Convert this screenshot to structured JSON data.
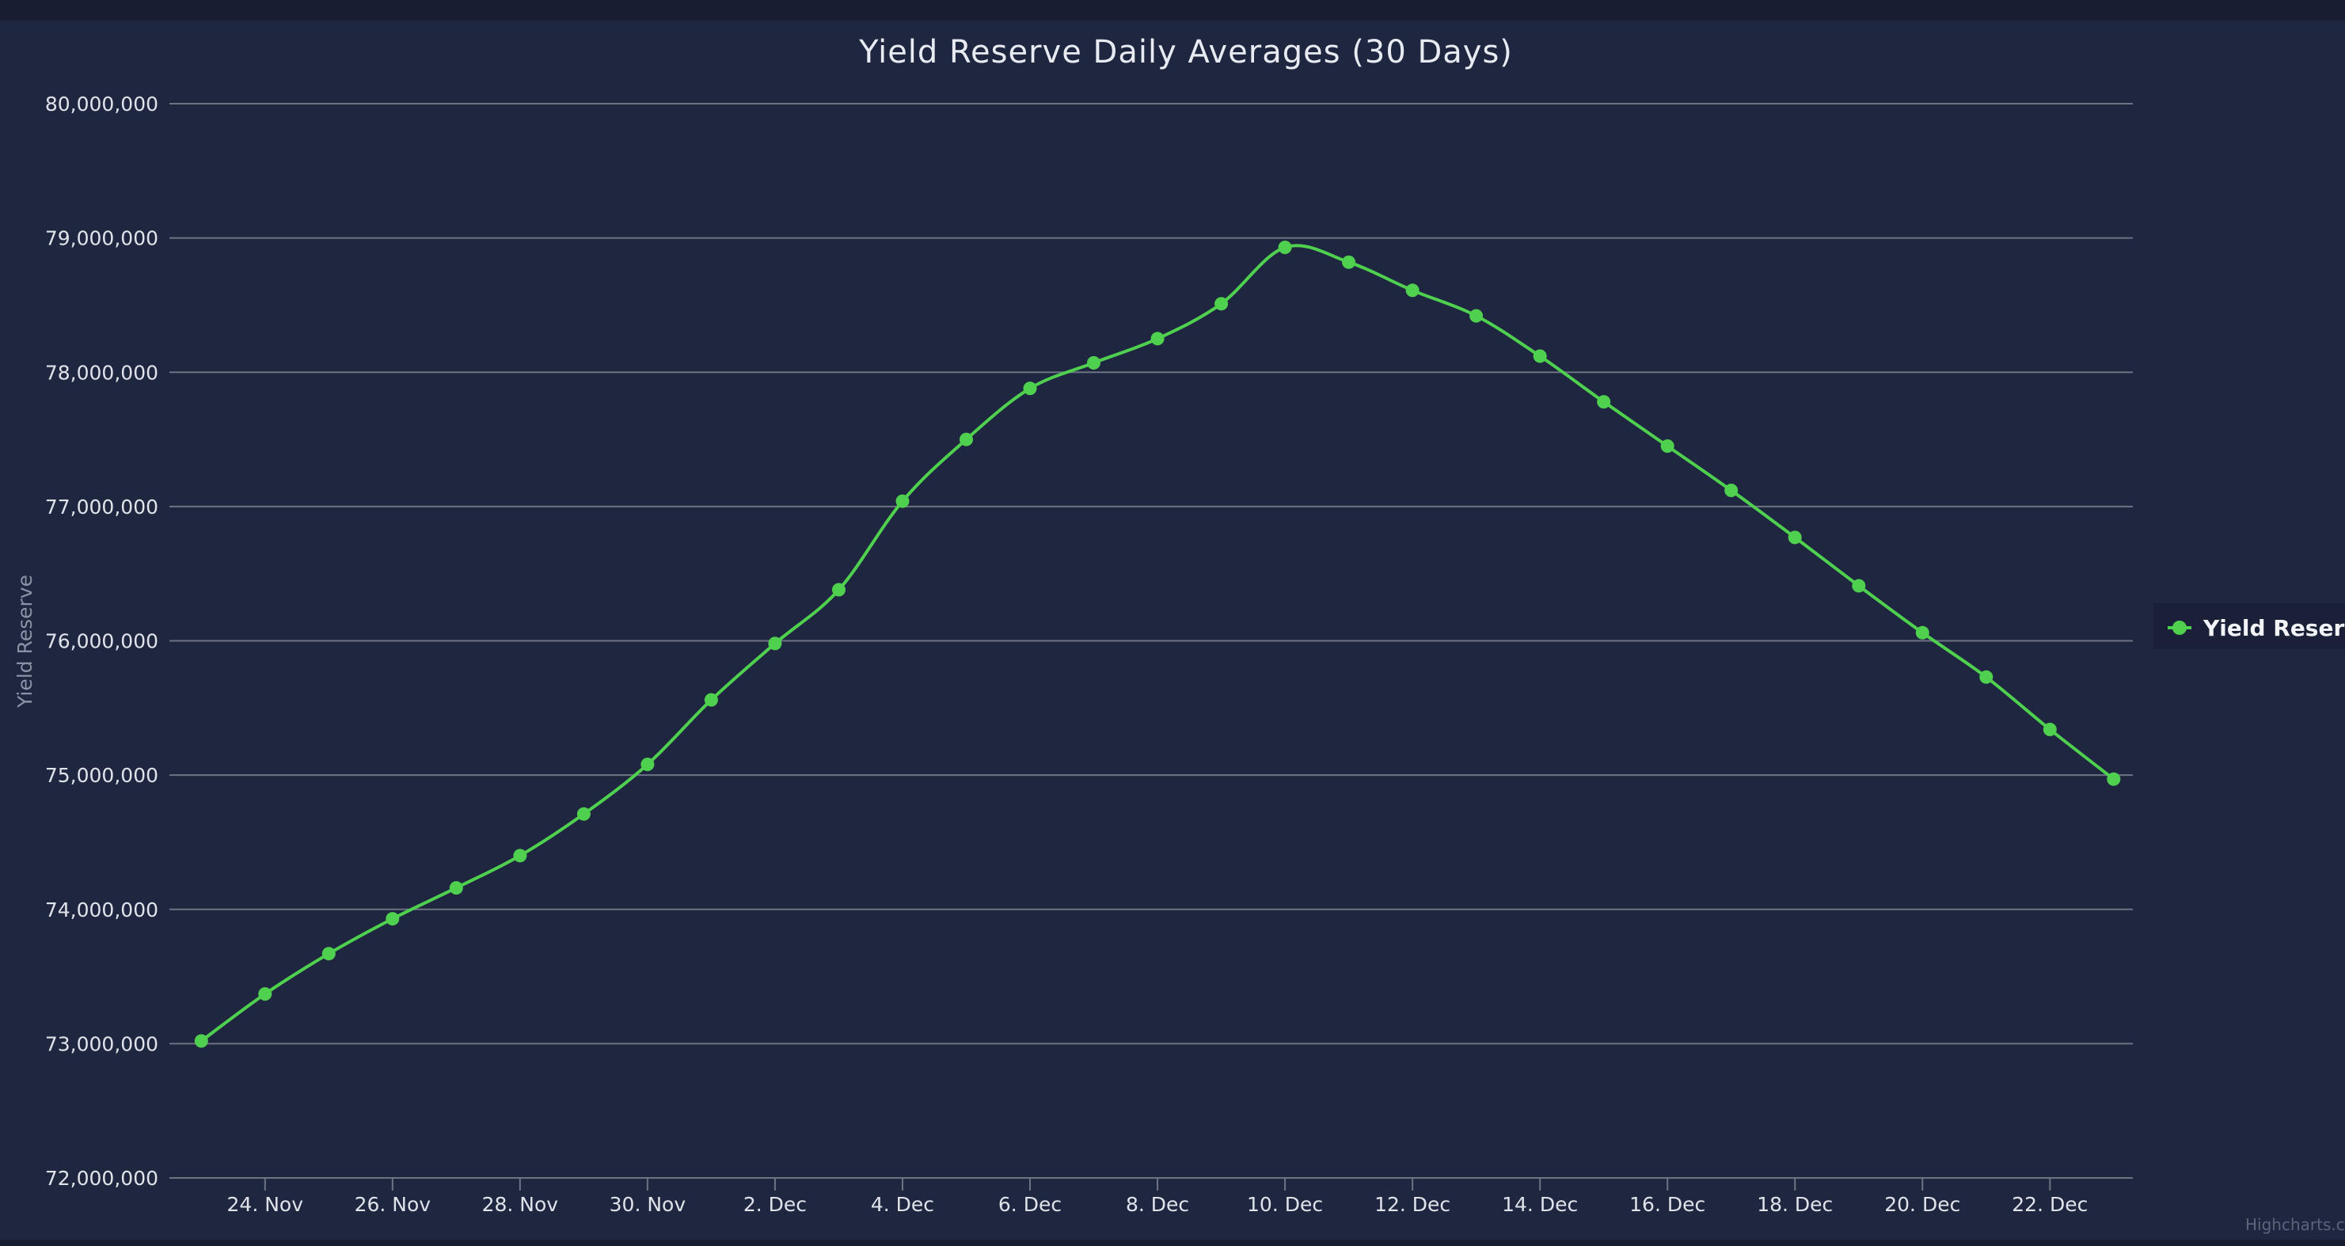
{
  "colors": {
    "page_background": "#1b2138",
    "plot_background": "#1f2740",
    "top_bar": "#181d31",
    "grid": "#6e7384",
    "series": "#4fd14f",
    "legend_background": "#1a2037"
  },
  "credits": "Highcharts.com",
  "chart_data": {
    "type": "line",
    "title": "Yield Reserve Daily Averages (30 Days)",
    "xlabel": "",
    "ylabel": "Yield Reserve",
    "ylim": [
      72000000,
      80000000
    ],
    "yticks": [
      72000000,
      73000000,
      74000000,
      75000000,
      76000000,
      77000000,
      78000000,
      79000000,
      80000000
    ],
    "ytick_labels": [
      "72,000,000",
      "73,000,000",
      "74,000,000",
      "75,000,000",
      "76,000,000",
      "77,000,000",
      "78,000,000",
      "79,000,000",
      "80,000,000"
    ],
    "xlim": [
      -0.5,
      30.3
    ],
    "xtick_positions": [
      1,
      3,
      5,
      7,
      9,
      11,
      13,
      15,
      17,
      19,
      21,
      23,
      25,
      27,
      29
    ],
    "xtick_labels": [
      "24. Nov",
      "26. Nov",
      "28. Nov",
      "30. Nov",
      "2. Dec",
      "4. Dec",
      "6. Dec",
      "8. Dec",
      "10. Dec",
      "12. Dec",
      "14. Dec",
      "16. Dec",
      "18. Dec",
      "20. Dec",
      "22. Dec"
    ],
    "legend": "right",
    "grid": true,
    "series": [
      {
        "name": "Yield Reserve",
        "x": [
          0,
          1,
          2,
          3,
          4,
          5,
          6,
          7,
          8,
          9,
          10,
          11,
          12,
          13,
          14,
          15,
          16,
          17,
          18,
          19,
          20,
          21,
          22,
          23,
          24,
          25,
          26,
          27,
          28,
          29,
          30
        ],
        "values": [
          73020000,
          73370000,
          73670000,
          73930000,
          74160000,
          74400000,
          74710000,
          75080000,
          75560000,
          75980000,
          76380000,
          77040000,
          77500000,
          77880000,
          78070000,
          78250000,
          78510000,
          78930000,
          78820000,
          78610000,
          78420000,
          78120000,
          77780000,
          77450000,
          77120000,
          76770000,
          76410000,
          76060000,
          75730000,
          75340000,
          74970000
        ]
      }
    ]
  }
}
